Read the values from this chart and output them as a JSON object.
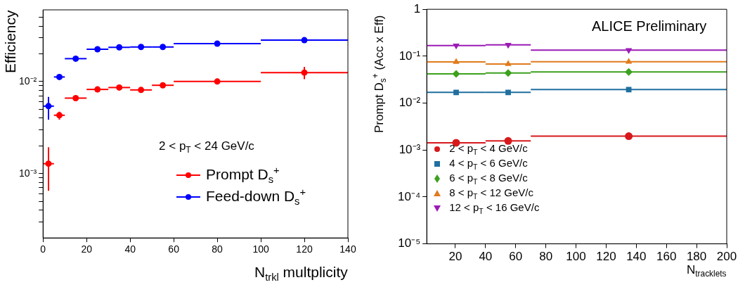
{
  "chart_data": [
    {
      "type": "scatter",
      "xlabel": "N$_{trkl}$ multplicity",
      "ylabel": "Efficiency",
      "annotations": [
        "2 < p$_{T}$ < 24 GeV/c"
      ],
      "x": [
        2.5,
        7.5,
        15,
        25,
        35,
        45,
        55,
        80,
        120
      ],
      "xlim": [
        0,
        140
      ],
      "xticks": [
        0,
        20,
        40,
        60,
        80,
        100,
        120,
        140
      ],
      "ylim": [
        0.0002,
        0.06
      ],
      "yticks": [
        {
          "value": 0.0003,
          "label": null
        },
        {
          "value": 0.0004,
          "label": null
        },
        {
          "value": 0.0005,
          "label": null
        },
        {
          "value": 0.0006,
          "label": null
        },
        {
          "value": 0.0007,
          "label": null
        },
        {
          "value": 0.0008,
          "label": null
        },
        {
          "value": 0.0009,
          "label": null
        },
        {
          "value": 0.001,
          "label": "10⁻³"
        },
        {
          "value": 0.002,
          "label": null
        },
        {
          "value": 0.003,
          "label": null
        },
        {
          "value": 0.004,
          "label": null
        },
        {
          "value": 0.005,
          "label": null
        },
        {
          "value": 0.006,
          "label": null
        },
        {
          "value": 0.007,
          "label": null
        },
        {
          "value": 0.008,
          "label": null
        },
        {
          "value": 0.009,
          "label": null
        },
        {
          "value": 0.01,
          "label": "10⁻²"
        },
        {
          "value": 0.02,
          "label": null
        },
        {
          "value": 0.03,
          "label": null
        },
        {
          "value": 0.04,
          "label": null
        },
        {
          "value": 0.05,
          "label": null
        }
      ],
      "log": "y",
      "grid": false,
      "legend": "bottom right",
      "marker": "circle",
      "series": [
        {
          "name": "Prompt D$_{s}$$^{+}$",
          "color": "#ff0000",
          "values": [
            0.00128,
            0.0043,
            0.0066,
            0.0082,
            0.0086,
            0.0081,
            0.0091,
            0.01,
            0.0125
          ],
          "errors": [
            [
              0.00065,
              0.00193
            ],
            [
              0.00385,
              0.0047
            ],
            null,
            null,
            null,
            null,
            null,
            null,
            [
              0.0106,
              0.0144
            ]
          ],
          "xerrors": [
            2.5,
            2.5,
            5,
            5,
            5,
            5,
            5,
            20,
            20
          ]
        },
        {
          "name": "Feed-down D$_{s}$$^{+}$",
          "color": "#0000ff",
          "values": [
            0.0054,
            0.0112,
            0.0177,
            0.0224,
            0.0235,
            0.0237,
            0.0237,
            0.0258,
            0.0281
          ],
          "errors": [
            [
              0.00385,
              0.0068
            ],
            null,
            null,
            null,
            null,
            null,
            null,
            null,
            null
          ],
          "xerrors": [
            2.5,
            2.5,
            5,
            5,
            5,
            5,
            5,
            20,
            20
          ]
        }
      ]
    },
    {
      "type": "scatter",
      "xlabel": "N$_{tracklets}$",
      "ylabel": "Prompt D$_{s}$$^{+}$ (Acc x Eff)",
      "annotations": [
        "ALICE Preliminary"
      ],
      "x": [
        20.5,
        55,
        135
      ],
      "xlim": [
        1,
        200
      ],
      "xticks": [
        20,
        40,
        60,
        80,
        100,
        120,
        140,
        160,
        180,
        200
      ],
      "ylim": [
        1e-05,
        1
      ],
      "yticks": [
        {
          "value": 1e-05,
          "label": "10⁻⁵"
        },
        {
          "value": 0.0001,
          "label": "10⁻⁴"
        },
        {
          "value": 0.001,
          "label": "10⁻³"
        },
        {
          "value": 0.01,
          "label": "10⁻²"
        },
        {
          "value": 0.1,
          "label": "10⁻¹"
        },
        1
      ],
      "log": "y",
      "grid": false,
      "legend": "bottom left",
      "series": [
        {
          "name": "2 < p$_{T}$ < 4 GeV/c",
          "color": "#d7191c",
          "marker": "circle",
          "values": [
            0.00143,
            0.00156,
            0.00197
          ],
          "xerrors": [
            19.5,
            15,
            65
          ]
        },
        {
          "name": "4 < p$_{T}$ < 6 GeV/c",
          "color": "#1f6f9f",
          "marker": "square",
          "values": [
            0.0169,
            0.0169,
            0.0194
          ],
          "xerrors": [
            19.5,
            15,
            65
          ]
        },
        {
          "name": "6 < p$_{T}$ < 8 GeV/c",
          "color": "#3ca11e",
          "marker": "diamond",
          "values": [
            0.042,
            0.044,
            0.0463
          ],
          "xerrors": [
            19.5,
            15,
            65
          ]
        },
        {
          "name": "8 < p$_{T}$ < 12 GeV/c",
          "color": "#e07b1c",
          "marker": "triangle",
          "values": [
            0.0755,
            0.068,
            0.0763
          ],
          "xerrors": [
            19.5,
            15,
            65
          ]
        },
        {
          "name": "12 < p$_{T}$ < 16 GeV/c",
          "color": "#9b1bb5",
          "marker": "triangle-down",
          "values": [
            0.168,
            0.175,
            0.135
          ],
          "xerrors": [
            19.5,
            15,
            65
          ]
        }
      ]
    }
  ]
}
